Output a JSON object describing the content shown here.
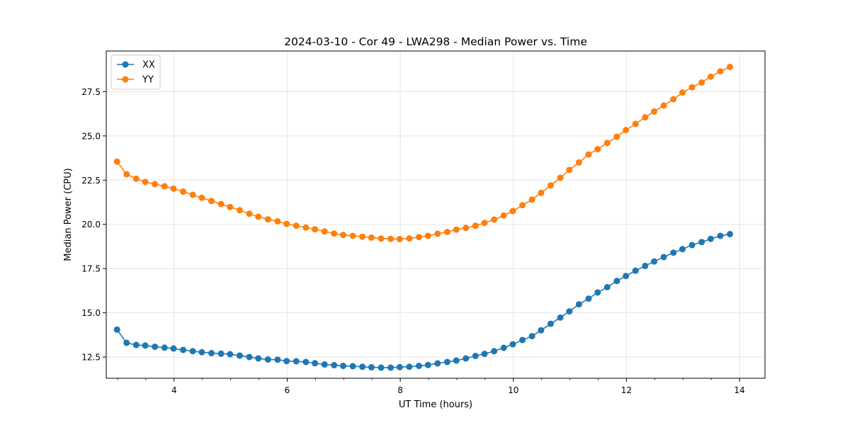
{
  "chart_data": {
    "type": "line",
    "title": "2024-03-10 - Cor 49 - LWA298 - Median Power vs. Time",
    "xlabel": "UT Time (hours)",
    "ylabel": "Median Power (CPU)",
    "xlim": [
      2.8,
      14.45
    ],
    "ylim": [
      11.3,
      29.8
    ],
    "xticks": [
      4,
      6,
      8,
      10,
      12,
      14
    ],
    "xtick_labels": [
      "4",
      "6",
      "8",
      "10",
      "12",
      "14"
    ],
    "yticks": [
      12.5,
      15.0,
      17.5,
      20.0,
      22.5,
      25.0,
      27.5
    ],
    "ytick_labels": [
      "12.5",
      "15.0",
      "17.5",
      "20.0",
      "22.5",
      "25.0",
      "27.5"
    ],
    "grid": true,
    "legend_position": "top-left",
    "colors": {
      "XX": "#1f77b4",
      "YY": "#ff7f0e"
    },
    "x": [
      2.99,
      3.16,
      3.33,
      3.49,
      3.66,
      3.83,
      3.99,
      4.16,
      4.33,
      4.49,
      4.66,
      4.83,
      4.99,
      5.16,
      5.33,
      5.49,
      5.66,
      5.83,
      5.99,
      6.16,
      6.33,
      6.49,
      6.66,
      6.83,
      6.99,
      7.16,
      7.33,
      7.49,
      7.66,
      7.83,
      7.99,
      8.16,
      8.33,
      8.49,
      8.66,
      8.83,
      8.99,
      9.16,
      9.33,
      9.49,
      9.66,
      9.83,
      9.99,
      10.16,
      10.33,
      10.49,
      10.66,
      10.83,
      10.99,
      11.16,
      11.33,
      11.49,
      11.66,
      11.83,
      11.99,
      12.16,
      12.33,
      12.49,
      12.66,
      12.83,
      12.99,
      13.16,
      13.33,
      13.49,
      13.66,
      13.83
    ],
    "series": [
      {
        "name": "XX",
        "values": [
          14.05,
          13.3,
          13.18,
          13.15,
          13.08,
          13.03,
          12.98,
          12.9,
          12.83,
          12.77,
          12.72,
          12.69,
          12.66,
          12.58,
          12.5,
          12.42,
          12.36,
          12.35,
          12.27,
          12.26,
          12.22,
          12.15,
          12.08,
          12.04,
          12.0,
          11.98,
          11.95,
          11.92,
          11.9,
          11.9,
          11.93,
          11.95,
          12.0,
          12.05,
          12.14,
          12.22,
          12.3,
          12.42,
          12.56,
          12.68,
          12.83,
          13.02,
          13.22,
          13.46,
          13.68,
          14.01,
          14.38,
          14.73,
          15.08,
          15.48,
          15.8,
          16.15,
          16.45,
          16.8,
          17.08,
          17.38,
          17.65,
          17.9,
          18.15,
          18.4,
          18.6,
          18.83,
          19.0,
          19.18,
          19.35,
          19.45
        ]
      },
      {
        "name": "YY",
        "values": [
          23.55,
          22.83,
          22.58,
          22.4,
          22.27,
          22.15,
          22.02,
          21.85,
          21.67,
          21.5,
          21.32,
          21.15,
          20.98,
          20.8,
          20.6,
          20.43,
          20.28,
          20.17,
          20.03,
          19.92,
          19.82,
          19.72,
          19.6,
          19.48,
          19.4,
          19.35,
          19.3,
          19.25,
          19.2,
          19.18,
          19.17,
          19.2,
          19.28,
          19.35,
          19.47,
          19.57,
          19.7,
          19.8,
          19.92,
          20.08,
          20.27,
          20.5,
          20.75,
          21.08,
          21.4,
          21.78,
          22.2,
          22.63,
          23.08,
          23.5,
          23.95,
          24.25,
          24.6,
          24.95,
          25.33,
          25.68,
          26.05,
          26.38,
          26.72,
          27.07,
          27.45,
          27.75,
          28.02,
          28.35,
          28.65,
          28.9
        ]
      }
    ]
  }
}
